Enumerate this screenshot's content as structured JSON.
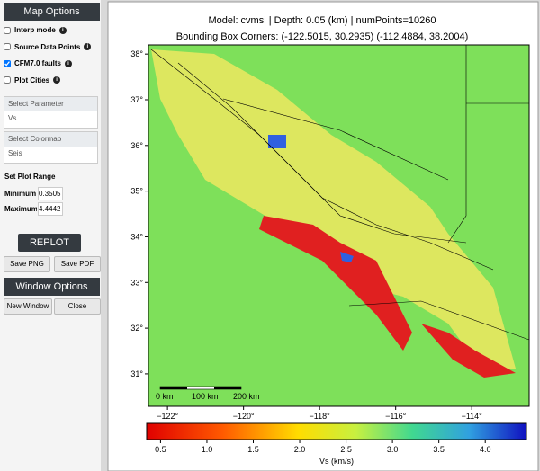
{
  "sidebar": {
    "map_options": {
      "title": "Map Options",
      "checkboxes": [
        {
          "label": "Interp mode",
          "checked": false
        },
        {
          "label": "Source Data Points",
          "checked": false
        },
        {
          "label": "CFM7.0 faults",
          "checked": true
        },
        {
          "label": "Plot Cities",
          "checked": false
        }
      ]
    },
    "parameter": {
      "label": "Select Parameter",
      "value": "Vs"
    },
    "colormap": {
      "label": "Select Colormap",
      "value": "Seis"
    },
    "plot_range": {
      "label": "Set Plot Range",
      "minimum_label": "Minimum",
      "minimum": "0.3505",
      "maximum_label": "Maximum",
      "maximum": "4.4442"
    },
    "replot": "REPLOT",
    "save_png": "Save PNG",
    "save_pdf": "Save PDF",
    "window_options": {
      "title": "Window Options",
      "new_window": "New Window",
      "close": "Close"
    }
  },
  "plot": {
    "title_line1": "Model: cvmsi | Depth: 0.05 (km) | numPoints=10260",
    "title_line2": "Bounding Box Corners: (-122.5015, 30.2935) (-112.4884, 38.2004)",
    "xlim": [
      -122.5,
      -112.49
    ],
    "ylim": [
      30.29,
      38.2
    ],
    "xticks": [
      {
        "value": -122,
        "label": "−122°"
      },
      {
        "value": -120,
        "label": "−120°"
      },
      {
        "value": -118,
        "label": "−118°"
      },
      {
        "value": -116,
        "label": "−116°"
      },
      {
        "value": -114,
        "label": "−114°"
      }
    ],
    "yticks": [
      {
        "value": 31,
        "label": "31°"
      },
      {
        "value": 32,
        "label": "32°"
      },
      {
        "value": 33,
        "label": "33°"
      },
      {
        "value": 34,
        "label": "34°"
      },
      {
        "value": 35,
        "label": "35°"
      },
      {
        "value": 36,
        "label": "36°"
      },
      {
        "value": 37,
        "label": "37°"
      },
      {
        "value": 38,
        "label": "38°"
      }
    ],
    "scale_bar": [
      "0 km",
      "100 km",
      "200 km"
    ],
    "colorbar": {
      "label": "Vs (km/s)",
      "lim": [
        0.3505,
        4.4442
      ],
      "ticks": [
        0.5,
        1.0,
        1.5,
        2.0,
        2.5,
        3.0,
        3.5,
        4.0
      ]
    }
  }
}
